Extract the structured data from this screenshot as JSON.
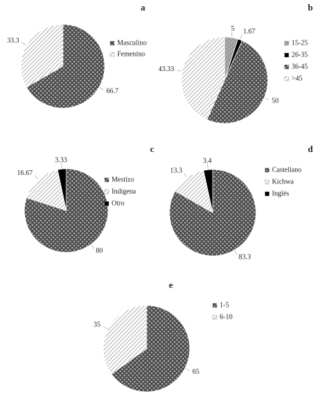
{
  "chart_data": [
    {
      "type": "pie",
      "title": "a",
      "categories": [
        "Masculino",
        "Femenino"
      ],
      "values": [
        66.7,
        33.3
      ],
      "colors": [
        "#4a4a4a",
        "#ffffff"
      ],
      "legend": "right"
    },
    {
      "type": "pie",
      "title": "b",
      "categories": [
        "15-25",
        "26-35",
        "36-45",
        ">45"
      ],
      "values": [
        5,
        1.67,
        50,
        43.33
      ],
      "colors": [
        "#9a9a9a",
        "#000000",
        "#4a4a4a",
        "#ffffff"
      ],
      "legend": "right"
    },
    {
      "type": "pie",
      "title": "c",
      "categories": [
        "Mestizo",
        "Indígena",
        "Otro"
      ],
      "values": [
        80,
        16.67,
        3.33
      ],
      "colors": [
        "#4a4a4a",
        "#ffffff",
        "#000000"
      ],
      "legend": "right"
    },
    {
      "type": "pie",
      "title": "d",
      "categories": [
        "Castellano",
        "Kichwa",
        "Inglés"
      ],
      "values": [
        83.3,
        13.3,
        3.4
      ],
      "colors": [
        "#4a4a4a",
        "#ffffff",
        "#000000"
      ],
      "legend": "right"
    },
    {
      "type": "pie",
      "title": "e",
      "categories": [
        "1-5",
        "6-10"
      ],
      "values": [
        65,
        35
      ],
      "colors": [
        "#4a4a4a",
        "#ffffff"
      ],
      "legend": "right"
    }
  ]
}
